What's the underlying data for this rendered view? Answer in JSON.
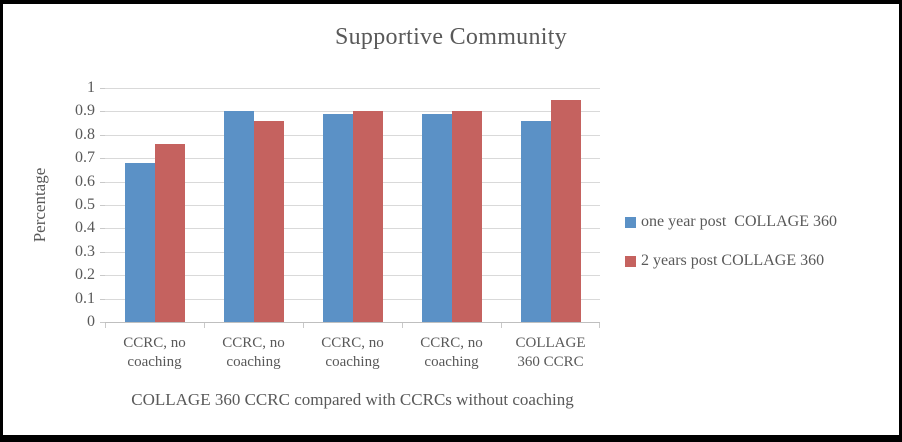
{
  "chart_data": {
    "type": "bar",
    "title": "Supportive Community",
    "categories": [
      "CCRC, no coaching",
      "CCRC, no coaching",
      "CCRC, no coaching",
      "CCRC, no coaching",
      "COLLAGE 360 CCRC"
    ],
    "series": [
      {
        "name": "one year post  COLLAGE 360",
        "color": "#5B91C6",
        "values": [
          0.68,
          0.9,
          0.89,
          0.89,
          0.86
        ]
      },
      {
        "name": "2 years post COLLAGE 360",
        "color": "#C5625F",
        "values": [
          0.76,
          0.86,
          0.9,
          0.9,
          0.95
        ]
      }
    ],
    "xlabel": "COLLAGE 360 CCRC compared with CCRCs without coaching",
    "ylabel": "Percentage",
    "ylim": [
      0,
      1
    ],
    "ytick_step": 0.1,
    "grid": true,
    "legend_position": "right",
    "text_color": "#595959",
    "gridline_color": "#D9D9D9"
  }
}
